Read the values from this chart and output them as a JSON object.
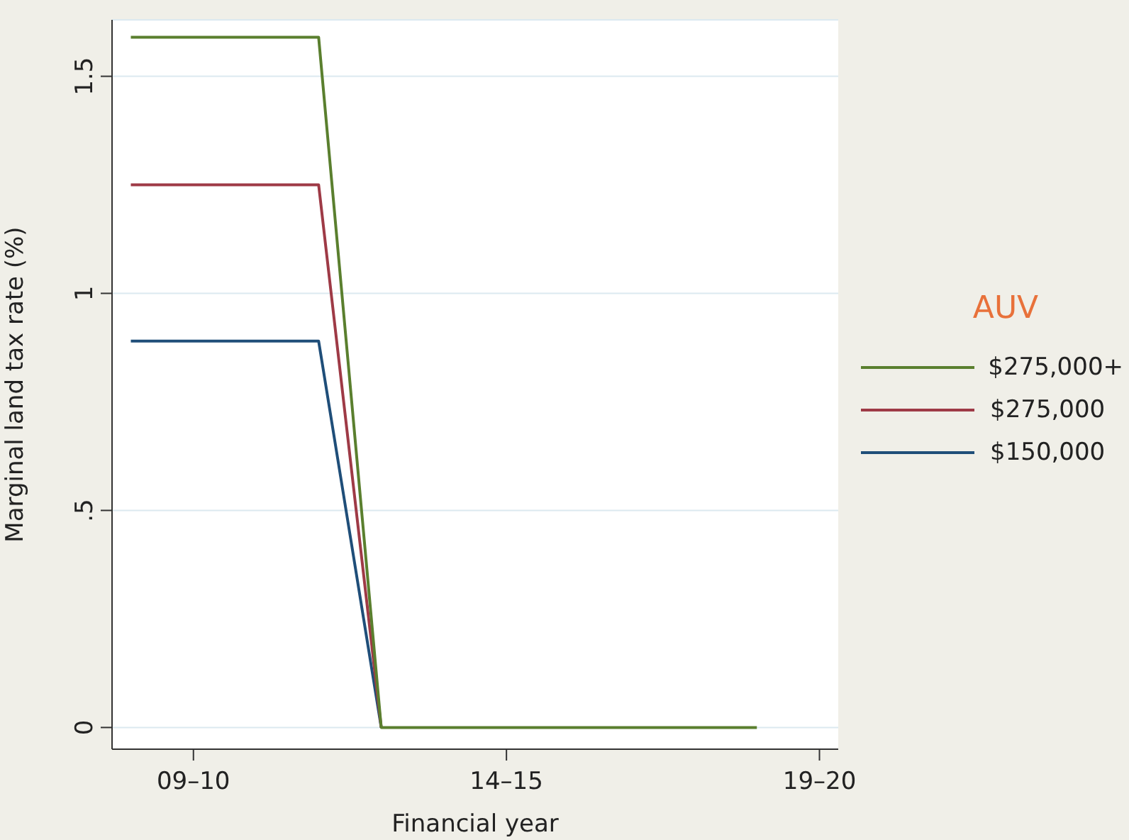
{
  "chart_data": {
    "type": "line",
    "xlabel": "Financial year",
    "ylabel": "Marginal land tax rate (%)",
    "legend_title": "AUV",
    "legend": "right",
    "grid": "y",
    "marker": "none",
    "line_style": "solid",
    "categories": [
      null,
      "09–10",
      null,
      null,
      null,
      null,
      "14–15",
      null,
      null,
      null,
      null,
      "19–20"
    ],
    "ylim": [
      -0.05,
      1.63
    ],
    "yticks": [
      {
        "value": 0,
        "label": "0"
      },
      {
        "value": 0.5,
        "label": ".5"
      },
      {
        "value": 1,
        "label": "1"
      },
      {
        "value": 1.5,
        "label": "1.5"
      }
    ],
    "series": [
      {
        "name": "$275,000+",
        "color": "#5a7f2e",
        "values": [
          1.59,
          1.59,
          1.59,
          1.59,
          0,
          0,
          0,
          0,
          0,
          0,
          0,
          null
        ]
      },
      {
        "name": "$275,000",
        "color": "#9e3a46",
        "values": [
          1.25,
          1.25,
          1.25,
          1.25,
          0,
          null,
          null,
          null,
          null,
          null,
          null,
          null
        ]
      },
      {
        "name": "$150,000",
        "color": "#1f4e79",
        "values": [
          0.89,
          0.89,
          0.89,
          0.89,
          0,
          null,
          null,
          null,
          null,
          null,
          null,
          null
        ]
      }
    ]
  }
}
